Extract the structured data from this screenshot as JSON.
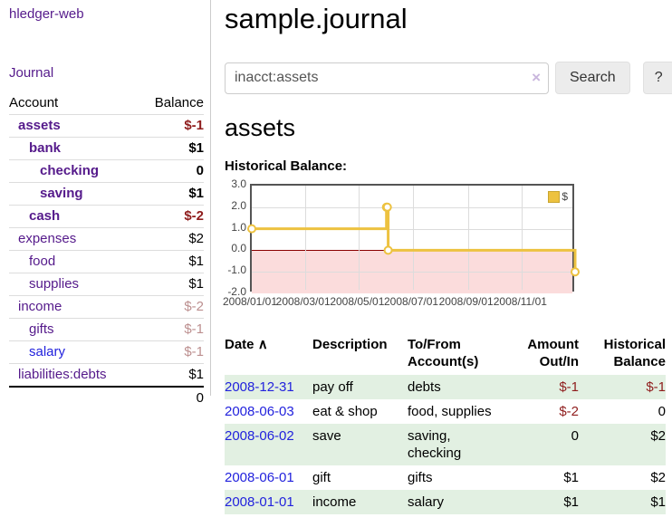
{
  "colors": {
    "link_purple": "#551a8b",
    "link_blue": "#2222dd",
    "negative_strong": "#8f1d1d",
    "negative_soft": "#bc8f8f",
    "series_yellow": "#edc240",
    "negative_region_pink": "#fbdcdc",
    "zero_line_red": "#8b0000",
    "row_stripe_green": "#e2f0e2"
  },
  "sidebar": {
    "brand": "hledger-web",
    "journal_link": "Journal",
    "table": {
      "headers": {
        "account": "Account",
        "balance": "Balance"
      },
      "rows": [
        {
          "account": "assets",
          "balance": "$-1",
          "level": 0,
          "bold": true
        },
        {
          "account": "bank",
          "balance": "$1",
          "level": 1,
          "bold": true
        },
        {
          "account": "checking",
          "balance": "0",
          "level": 2,
          "bold": true
        },
        {
          "account": "saving",
          "balance": "$1",
          "level": 2,
          "bold": true
        },
        {
          "account": "cash",
          "balance": "$-2",
          "level": 1,
          "bold": true
        },
        {
          "account": "expenses",
          "balance": "$2",
          "level": 0,
          "bold": false
        },
        {
          "account": "food",
          "balance": "$1",
          "level": 1,
          "bold": false
        },
        {
          "account": "supplies",
          "balance": "$1",
          "level": 1,
          "bold": false
        },
        {
          "account": "income",
          "balance": "$-2",
          "level": 0,
          "bold": false
        },
        {
          "account": "gifts",
          "balance": "$-1",
          "level": 1,
          "bold": false
        },
        {
          "account": "salary",
          "balance": "$-1",
          "level": 1,
          "bold": false,
          "unvisited": true
        },
        {
          "account": "liabilities:debts",
          "balance": "$1",
          "level": 0,
          "bold": false
        }
      ],
      "total": "0"
    }
  },
  "main": {
    "title": "sample.journal",
    "search": {
      "value": "inacct:assets",
      "clear_icon": "×",
      "search_button": "Search",
      "help_button": "?"
    },
    "account_heading": "assets",
    "section_label": "Historical Balance:"
  },
  "chart_data": {
    "type": "line",
    "step": true,
    "title": "Historical Balance",
    "x_range": [
      "2008-01-01",
      "2009-01-01"
    ],
    "y_range": [
      -2,
      3
    ],
    "y_ticks": [
      3.0,
      2.0,
      1.0,
      0.0,
      -1.0,
      -2.0
    ],
    "x_ticks": [
      "2008/01/01",
      "2008/03/01",
      "2008/05/01",
      "2008/07/01",
      "2008/09/01",
      "2008/11/01"
    ],
    "grid": true,
    "legend_position": "top-right",
    "negative_region_shaded": true,
    "series": [
      {
        "name": "$",
        "color": "#edc240",
        "points": [
          [
            "2008-01-01",
            1
          ],
          [
            "2008-06-01",
            2
          ],
          [
            "2008-06-02",
            2
          ],
          [
            "2008-06-03",
            0
          ],
          [
            "2008-12-31",
            -1
          ]
        ]
      }
    ]
  },
  "register": {
    "sort_icon": "∧",
    "headers": [
      {
        "label": "Date",
        "sorted": true
      },
      {
        "label": "Description"
      },
      {
        "label": "To/From Account(s)"
      },
      {
        "label": "Amount Out/In",
        "align": "right"
      },
      {
        "label": "Historical Balance",
        "align": "right"
      }
    ],
    "rows": [
      {
        "date": "2008-12-31",
        "description": "pay off",
        "accounts": "debts",
        "amount": "$-1",
        "balance": "$-1"
      },
      {
        "date": "2008-06-03",
        "description": "eat & shop",
        "accounts": "food, supplies",
        "amount": "$-2",
        "balance": "0"
      },
      {
        "date": "2008-06-02",
        "description": "save",
        "accounts": "saving, checking",
        "amount": "0",
        "balance": "$2"
      },
      {
        "date": "2008-06-01",
        "description": "gift",
        "accounts": "gifts",
        "amount": "$1",
        "balance": "$2"
      },
      {
        "date": "2008-01-01",
        "description": "income",
        "accounts": "salary",
        "amount": "$1",
        "balance": "$1"
      }
    ]
  }
}
